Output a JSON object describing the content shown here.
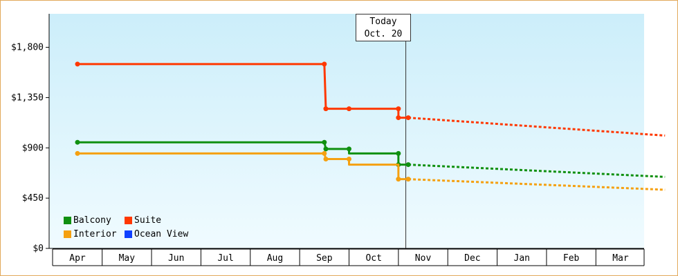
{
  "chart_data": {
    "type": "line",
    "title": "",
    "xlabel": "",
    "ylabel": "",
    "categories": [
      "Apr",
      "May",
      "Jun",
      "Jul",
      "Aug",
      "Sep",
      "Oct",
      "Nov",
      "Dec",
      "Jan",
      "Feb",
      "Mar"
    ],
    "ylim": [
      0,
      2100
    ],
    "yticks": [
      "$0",
      "$450",
      "$900",
      "$1,350",
      "$1,800"
    ],
    "ytick_values": [
      0,
      450,
      900,
      1350,
      1800
    ],
    "today_label": "Today",
    "today_date": "Oct. 20",
    "today_x": 6.65,
    "legend": {
      "placement": "bottom-left"
    },
    "series": [
      {
        "name": "Balcony",
        "color": "#109010",
        "history": [
          [
            0,
            950
          ],
          [
            5.0,
            950
          ],
          [
            5.03,
            890
          ],
          [
            5.5,
            890
          ],
          [
            5.5,
            850
          ],
          [
            6.5,
            850
          ],
          [
            6.5,
            750
          ],
          [
            6.7,
            750
          ]
        ],
        "markers": [
          [
            0,
            950
          ],
          [
            5.0,
            950
          ],
          [
            5.03,
            890
          ],
          [
            5.5,
            890
          ],
          [
            6.5,
            850
          ],
          [
            6.5,
            750
          ],
          [
            6.7,
            750
          ]
        ],
        "forecast": [
          [
            6.7,
            750
          ],
          [
            11.9,
            640
          ]
        ]
      },
      {
        "name": "Suite",
        "color": "#ff3800",
        "history": [
          [
            0,
            1650
          ],
          [
            5.0,
            1650
          ],
          [
            5.03,
            1250
          ],
          [
            6.5,
            1250
          ],
          [
            6.5,
            1170
          ],
          [
            6.7,
            1170
          ]
        ],
        "markers": [
          [
            0,
            1650
          ],
          [
            5.0,
            1650
          ],
          [
            5.03,
            1250
          ],
          [
            5.5,
            1250
          ],
          [
            6.5,
            1250
          ],
          [
            6.5,
            1170
          ],
          [
            6.7,
            1170
          ]
        ],
        "forecast": [
          [
            6.7,
            1170
          ],
          [
            11.9,
            1010
          ]
        ]
      },
      {
        "name": "Interior",
        "color": "#f5a010",
        "history": [
          [
            0,
            850
          ],
          [
            5.0,
            850
          ],
          [
            5.03,
            800
          ],
          [
            5.5,
            800
          ],
          [
            5.5,
            750
          ],
          [
            6.5,
            750
          ],
          [
            6.5,
            620
          ],
          [
            6.7,
            620
          ]
        ],
        "markers": [
          [
            0,
            850
          ],
          [
            5.0,
            850
          ],
          [
            5.03,
            800
          ],
          [
            5.5,
            800
          ],
          [
            6.5,
            620
          ],
          [
            6.7,
            620
          ]
        ],
        "forecast": [
          [
            6.7,
            620
          ],
          [
            11.9,
            525
          ]
        ]
      },
      {
        "name": "Ocean View",
        "color": "#1040ff",
        "history": [],
        "markers": [],
        "forecast": []
      }
    ]
  }
}
